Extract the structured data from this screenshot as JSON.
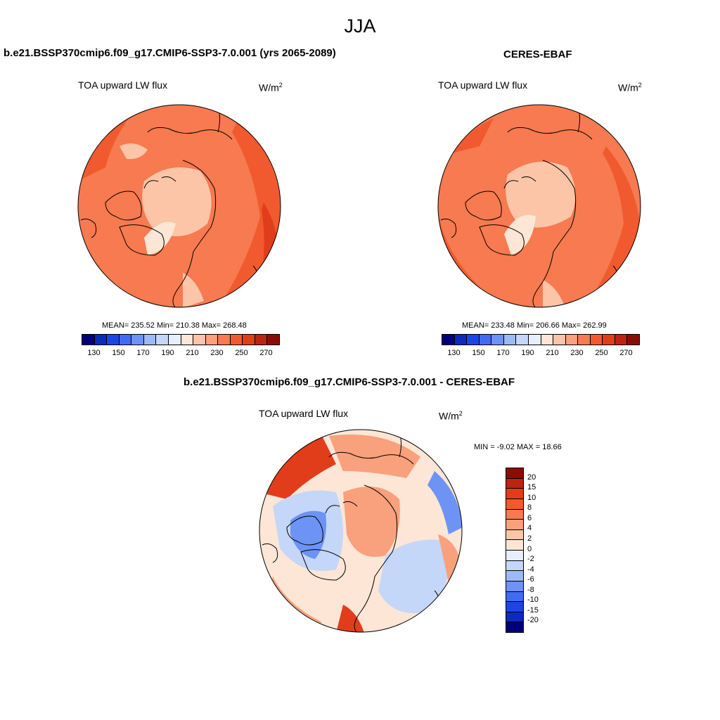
{
  "title": "JJA",
  "panels": [
    {
      "case": "b.e21.BSSP370cmip6.f09_g17.CMIP6-SSP3-7.0.001 (yrs 2065-2089)",
      "variable": "TOA upward LW flux",
      "units_base": "W/m",
      "units_exp": "2",
      "stats": "MEAN= 235.52  Min= 210.38  Max= 268.48",
      "mean": 235.52,
      "min": 210.38,
      "max": 268.48
    },
    {
      "case": "CERES-EBAF",
      "variable": "TOA upward LW flux",
      "units_base": "W/m",
      "units_exp": "2",
      "stats": "MEAN= 233.48  Min= 206.66  Max= 262.99",
      "mean": 233.48,
      "min": 206.66,
      "max": 262.99
    }
  ],
  "abs_colorbar": {
    "labels": [
      "130",
      "150",
      "170",
      "190",
      "210",
      "230",
      "250",
      "270"
    ],
    "colors": [
      "#00007a",
      "#0a2bbd",
      "#1b46e6",
      "#3f6cf2",
      "#6d93f5",
      "#9dbaf7",
      "#c4d7f8",
      "#e6effb",
      "#fde6d6",
      "#fcc5a8",
      "#f9a07c",
      "#f77a50",
      "#f15a2e",
      "#e23d1a",
      "#bd2310",
      "#8c0c05"
    ]
  },
  "diff_panel": {
    "case": "b.e21.BSSP370cmip6.f09_g17.CMIP6-SSP3-7.0.001 - CERES-EBAF",
    "variable": "TOA upward LW flux",
    "units_base": "W/m",
    "units_exp": "2",
    "stats": "MIN =  -9.02 MAX =  18.66",
    "min": -9.02,
    "max": 18.66
  },
  "diff_colorbar": {
    "labels": [
      "20",
      "15",
      "10",
      "8",
      "6",
      "4",
      "2",
      "0",
      "-2",
      "-4",
      "-6",
      "-8",
      "-10",
      "-15",
      "-20"
    ],
    "colors": [
      "#8c0c05",
      "#bd2310",
      "#e23d1a",
      "#f15a2e",
      "#f77a50",
      "#f9a07c",
      "#fcc5a8",
      "#fde6d6",
      "#e6effb",
      "#c4d7f8",
      "#9dbaf7",
      "#6d93f5",
      "#3f6cf2",
      "#1b46e6",
      "#0a2bbd",
      "#00007a"
    ]
  },
  "map_colors": {
    "abs_base": "#f77a50",
    "abs_light": "#fcc5a8",
    "abs_lighter": "#fde6d6",
    "abs_dark": "#f15a2e",
    "abs_darker": "#e23d1a",
    "diff_base": "#fde6d6",
    "diff_warm": "#f9a07c",
    "diff_hot": "#e23d1a",
    "diff_cool": "#c4d7f8",
    "diff_cold": "#6d93f5",
    "coast": "#000000"
  }
}
